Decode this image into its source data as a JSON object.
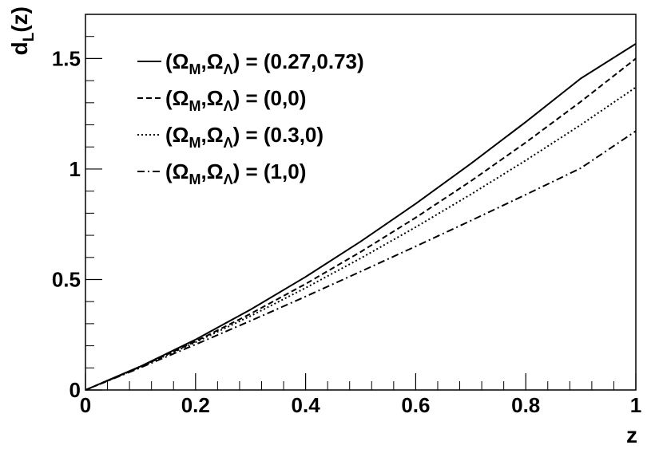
{
  "chart_data": {
    "type": "line",
    "xlabel": "z",
    "ylabel": "d_L(z)",
    "ylabel_parts": {
      "base": "d",
      "sub": "L",
      "rest": "(z)"
    },
    "xlim": [
      0,
      1
    ],
    "ylim": [
      0,
      1.7
    ],
    "x_ticks": [
      {
        "value": 0,
        "label": "0"
      },
      {
        "value": 0.2,
        "label": "0.2"
      },
      {
        "value": 0.4,
        "label": "0.4"
      },
      {
        "value": 0.6,
        "label": "0.6"
      },
      {
        "value": 0.8,
        "label": "0.8"
      },
      {
        "value": 1,
        "label": "1"
      }
    ],
    "y_ticks": [
      {
        "value": 0,
        "label": "0"
      },
      {
        "value": 0.5,
        "label": "0.5"
      },
      {
        "value": 1,
        "label": "1"
      },
      {
        "value": 1.5,
        "label": "1.5"
      }
    ],
    "grid": false,
    "legend_position": "top-left",
    "x": [
      0,
      0.1,
      0.2,
      0.3,
      0.4,
      0.5,
      0.6,
      0.7,
      0.8,
      0.9,
      1.0
    ],
    "series": [
      {
        "name": "(Ω_M,Ω_Λ) = (0.27,0.73)",
        "legend": {
          "pre": "(Ω",
          "sub1": "M",
          "mid": ",Ω",
          "sub2": "Λ",
          "post": ") = (0.27,0.73)"
        },
        "line_style": "solid",
        "values": [
          0,
          0.107,
          0.228,
          0.364,
          0.512,
          0.672,
          0.843,
          1.024,
          1.213,
          1.41,
          1.567
        ]
      },
      {
        "name": "(Ω_M,Ω_Λ) = (0,0)",
        "legend": {
          "pre": "(Ω",
          "sub1": "M",
          "mid": ",Ω",
          "sub2": "Λ",
          "post": ") = (0,0)"
        },
        "line_style": "dashed",
        "values": [
          0,
          0.105,
          0.22,
          0.345,
          0.48,
          0.625,
          0.78,
          0.945,
          1.12,
          1.305,
          1.5
        ]
      },
      {
        "name": "(Ω_M,Ω_Λ) = (0.3,0)",
        "legend": {
          "pre": "(Ω",
          "sub1": "M",
          "mid": ",Ω",
          "sub2": "Λ",
          "post": ") = (0.3,0)"
        },
        "line_style": "dotted",
        "values": [
          0,
          0.104,
          0.216,
          0.335,
          0.462,
          0.596,
          0.737,
          0.885,
          1.039,
          1.2,
          1.37
        ]
      },
      {
        "name": "(Ω_M,Ω_Λ) = (1,0)",
        "legend": {
          "pre": "(Ω",
          "sub1": "M",
          "mid": ",Ω",
          "sub2": "Λ",
          "post": ") = (1,0)"
        },
        "line_style": "dashdot",
        "values": [
          0,
          0.101,
          0.206,
          0.313,
          0.423,
          0.536,
          0.65,
          0.766,
          0.884,
          1.004,
          1.172
        ]
      }
    ]
  }
}
